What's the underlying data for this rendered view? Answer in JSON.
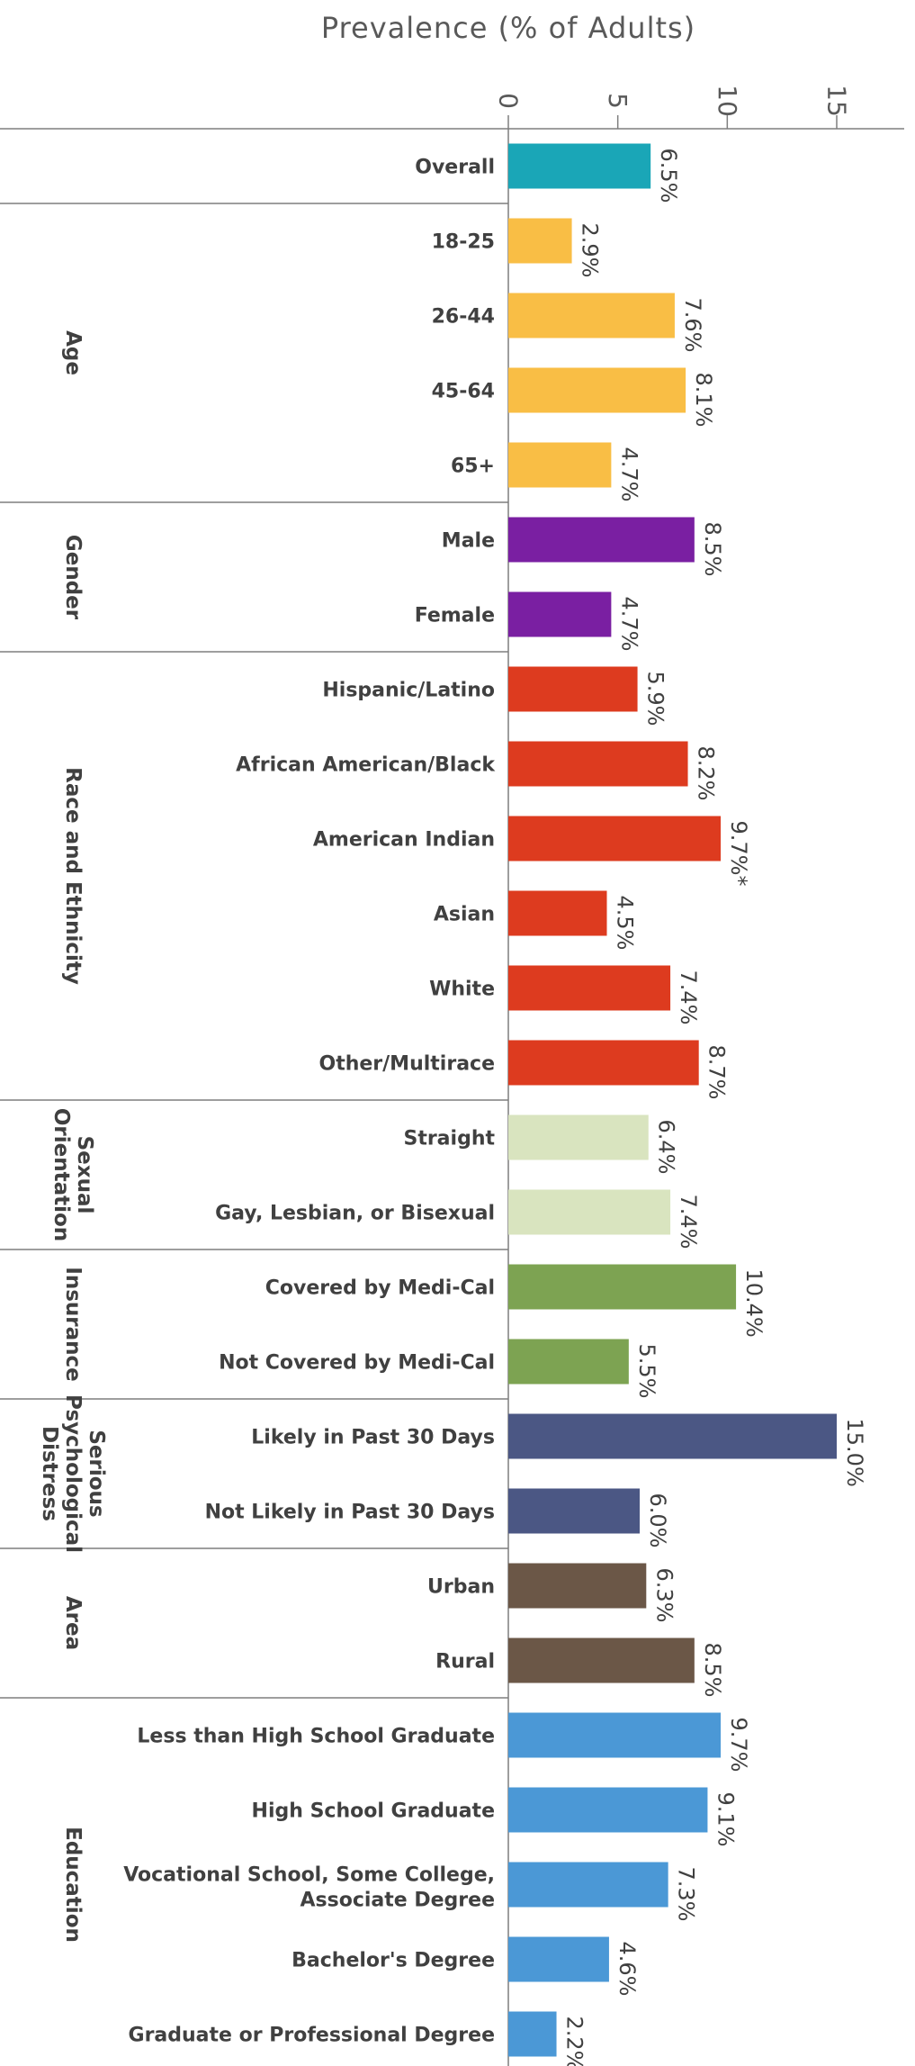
{
  "chart_data": {
    "type": "bar",
    "orientation": "horizontal",
    "title": "Prevalence (% of Adults)",
    "xlim": [
      0,
      15
    ],
    "xticks": [
      0,
      5,
      10,
      15
    ],
    "groups": [
      {
        "label": "",
        "color": "#1aa6b7",
        "bars": [
          {
            "category": "Overall",
            "value": 6.5,
            "label": "6.5%"
          }
        ]
      },
      {
        "label": "Age",
        "color": "#f9be45",
        "bars": [
          {
            "category": "18-25",
            "value": 2.9,
            "label": "2.9%"
          },
          {
            "category": "26-44",
            "value": 7.6,
            "label": "7.6%"
          },
          {
            "category": "45-64",
            "value": 8.1,
            "label": "8.1%"
          },
          {
            "category": "65+",
            "value": 4.7,
            "label": "4.7%"
          }
        ]
      },
      {
        "label": "Gender",
        "color": "#7a1fa2",
        "bars": [
          {
            "category": "Male",
            "value": 8.5,
            "label": "8.5%"
          },
          {
            "category": "Female",
            "value": 4.7,
            "label": "4.7%"
          }
        ]
      },
      {
        "label": "Race and Ethnicity",
        "color": "#dd3b1f",
        "bars": [
          {
            "category": "Hispanic/Latino",
            "value": 5.9,
            "label": "5.9%"
          },
          {
            "category": "African American/Black",
            "value": 8.2,
            "label": "8.2%"
          },
          {
            "category": "American Indian",
            "value": 9.7,
            "label": "9.7%*"
          },
          {
            "category": "Asian",
            "value": 4.5,
            "label": "4.5%"
          },
          {
            "category": "White",
            "value": 7.4,
            "label": "7.4%"
          },
          {
            "category": "Other/Multirace",
            "value": 8.7,
            "label": "8.7%"
          }
        ]
      },
      {
        "label": "Sexual Orientation",
        "color": "#d9e4bf",
        "bars": [
          {
            "category": "Straight",
            "value": 6.4,
            "label": "6.4%"
          },
          {
            "category": "Gay, Lesbian, or Bisexual",
            "value": 7.4,
            "label": "7.4%"
          }
        ]
      },
      {
        "label": "Insurance",
        "color": "#7da352",
        "bars": [
          {
            "category": "Covered by Medi-Cal",
            "value": 10.4,
            "label": "10.4%"
          },
          {
            "category": "Not Covered by Medi-Cal",
            "value": 5.5,
            "label": "5.5%"
          }
        ]
      },
      {
        "label": "Serious Psychological Distress",
        "color": "#4b5784",
        "bars": [
          {
            "category": "Likely in Past 30 Days",
            "value": 15.0,
            "label": "15.0%"
          },
          {
            "category": "Not Likely in Past 30 Days",
            "value": 6.0,
            "label": "6.0%"
          }
        ]
      },
      {
        "label": "Area",
        "color": "#6b5747",
        "bars": [
          {
            "category": "Urban",
            "value": 6.3,
            "label": "6.3%"
          },
          {
            "category": "Rural",
            "value": 8.5,
            "label": "8.5%"
          }
        ]
      },
      {
        "label": "Education",
        "color": "#4b98d6",
        "bars": [
          {
            "category": "Less than High School Graduate",
            "value": 9.7,
            "label": "9.7%"
          },
          {
            "category": "High School Graduate",
            "value": 9.1,
            "label": "9.1%"
          },
          {
            "category": "Vocational School, Some College, Associate Degree",
            "value": 7.3,
            "label": "7.3%"
          },
          {
            "category": "Bachelor's Degree",
            "value": 4.6,
            "label": "4.6%"
          },
          {
            "category": "Graduate or Professional Degree",
            "value": 2.2,
            "label": "2.2%"
          }
        ]
      }
    ]
  }
}
